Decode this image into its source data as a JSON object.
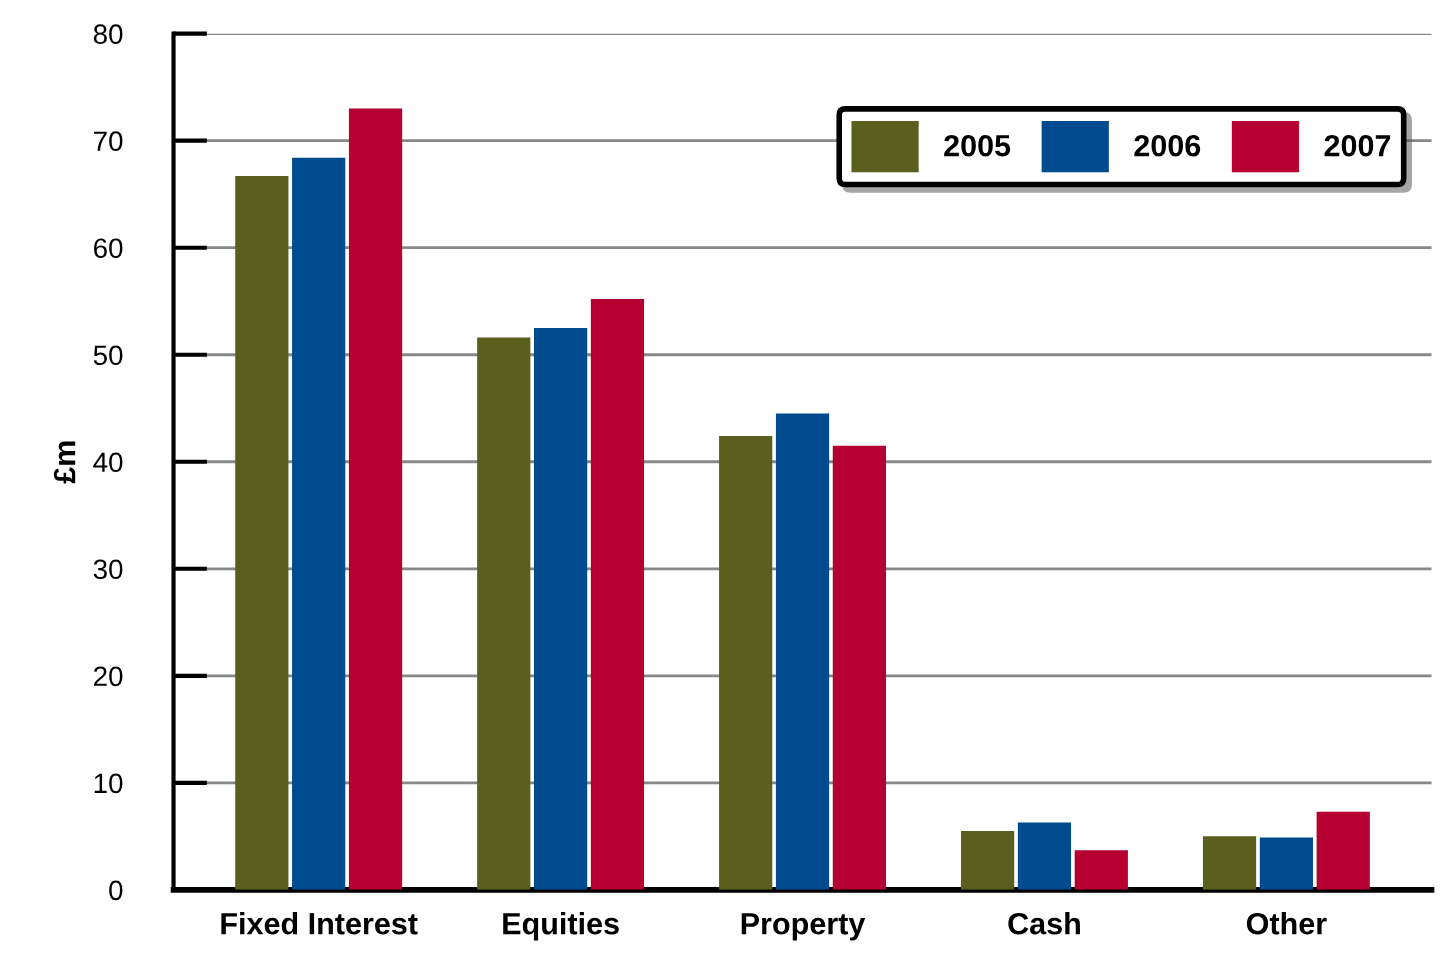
{
  "chart_data": {
    "type": "bar",
    "ylabel": "£m",
    "categories": [
      "Fixed Interest",
      "Equities",
      "Property",
      "Cash",
      "Other"
    ],
    "series": [
      {
        "name": "2005",
        "color": "#5a5f1e",
        "values": [
          66.7,
          51.6,
          42.4,
          5.5,
          5.0
        ]
      },
      {
        "name": "2006",
        "color": "#004b8d",
        "values": [
          68.4,
          52.5,
          44.5,
          6.3,
          4.9
        ]
      },
      {
        "name": "2007",
        "color": "#b50031",
        "values": [
          73.0,
          55.2,
          41.5,
          3.7,
          7.3
        ]
      }
    ],
    "ylim": [
      0,
      80
    ],
    "yticks": [
      0,
      10,
      20,
      30,
      40,
      50,
      60,
      70,
      80
    ],
    "grid": "y",
    "legend": "top right"
  }
}
